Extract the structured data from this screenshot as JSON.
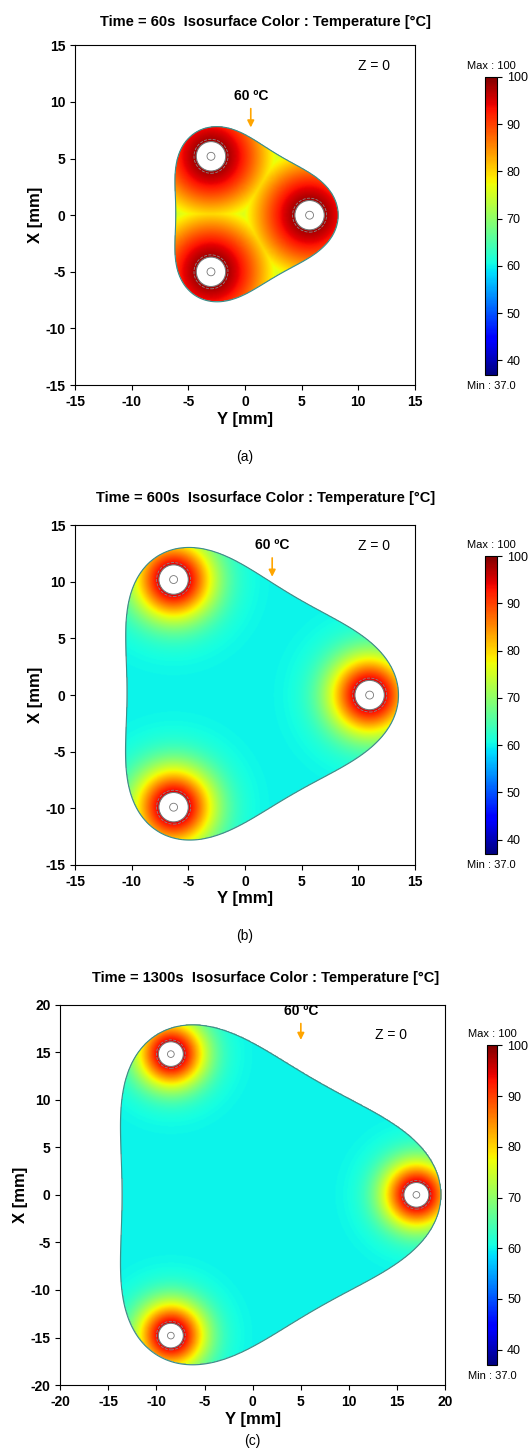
{
  "chart_data": [
    {
      "type": "isosurface",
      "title": "Time = 60s  Isosurface Color : Temperature [°C]",
      "panel_label": "(a)",
      "xlabel": "Y [mm]",
      "ylabel": "X [mm]",
      "xlim": [
        -15,
        15
      ],
      "ylim": [
        -15,
        15
      ],
      "xticks": [
        -15,
        -10,
        -5,
        0,
        5,
        10,
        15
      ],
      "yticks": [
        -15,
        -10,
        -5,
        0,
        5,
        10,
        15
      ],
      "plane_label": "Z = 0",
      "isotherm_label": "60 ºC",
      "isotherm": 60,
      "probes": {
        "y": [
          -3,
          5.7,
          -3
        ],
        "x": [
          5.2,
          0,
          -5
        ]
      },
      "colorbar": {
        "range": [
          37,
          100
        ],
        "ticks": [
          40,
          50,
          60,
          70,
          80,
          90,
          100
        ],
        "max_label": "Max : 100",
        "min_label": "Min : 37.0"
      }
    },
    {
      "type": "isosurface",
      "title": "Time = 600s  Isosurface Color : Temperature [°C]",
      "panel_label": "(b)",
      "xlabel": "Y [mm]",
      "ylabel": "X [mm]",
      "xlim": [
        -15,
        15
      ],
      "ylim": [
        -15,
        15
      ],
      "xticks": [
        -15,
        -10,
        -5,
        0,
        5,
        10,
        15
      ],
      "yticks": [
        -15,
        -10,
        -5,
        0,
        5,
        10,
        15
      ],
      "plane_label": "Z = 0",
      "isotherm_label": "60 ºC",
      "isotherm": 60,
      "probes": {
        "y": [
          -6.3,
          11,
          -6.3
        ],
        "x": [
          10.2,
          0,
          -9.9
        ]
      },
      "colorbar": {
        "range": [
          37,
          100
        ],
        "ticks": [
          40,
          50,
          60,
          70,
          80,
          90,
          100
        ],
        "max_label": "Max : 100",
        "min_label": "Min : 37.0"
      }
    },
    {
      "type": "isosurface",
      "title": "Time = 1300s  Isosurface Color : Temperature [°C]",
      "panel_label": "(c)",
      "xlabel": "Y [mm]",
      "ylabel": "X [mm]",
      "xlim": [
        -20,
        20
      ],
      "ylim": [
        -20,
        20
      ],
      "xticks": [
        -20,
        -15,
        -10,
        -5,
        0,
        5,
        10,
        15,
        20
      ],
      "yticks": [
        -20,
        -15,
        -10,
        -5,
        0,
        5,
        10,
        15,
        20
      ],
      "plane_label": "Z = 0",
      "isotherm_label": "60 ºC",
      "isotherm": 60,
      "probes": {
        "y": [
          -8.5,
          17,
          -8.5
        ],
        "x": [
          14.8,
          0,
          -14.8
        ]
      },
      "colorbar": {
        "range": [
          37,
          100
        ],
        "ticks": [
          40,
          50,
          60,
          70,
          80,
          90,
          100
        ],
        "max_label": "Max : 100",
        "min_label": "Min : 37.0"
      }
    }
  ]
}
